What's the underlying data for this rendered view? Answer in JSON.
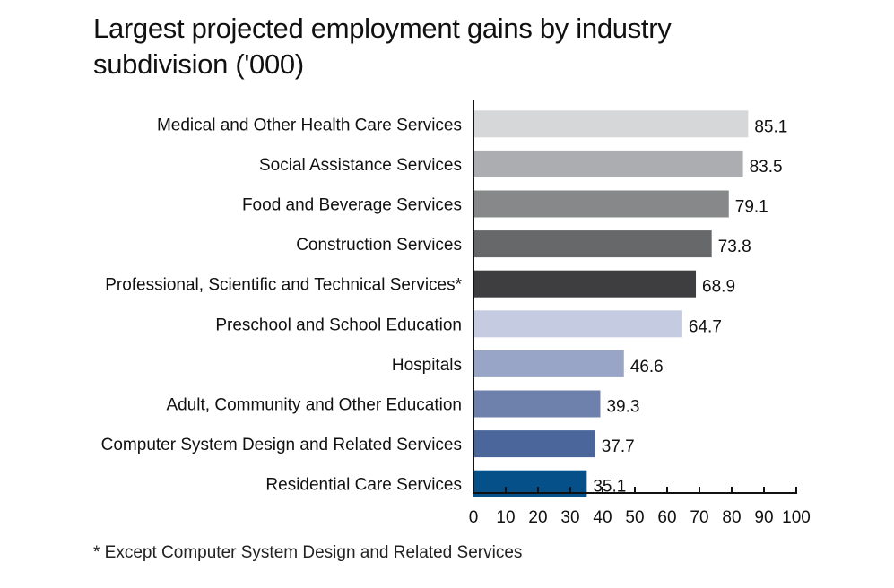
{
  "chart_data": {
    "type": "bar",
    "orientation": "horizontal",
    "title": "Largest projected employment gains by industry subdivision ('000)",
    "xlabel": "",
    "ylabel": "",
    "xlim": [
      0,
      100
    ],
    "x_ticks": [
      0,
      10,
      20,
      30,
      40,
      50,
      60,
      70,
      80,
      90,
      100
    ],
    "grid": false,
    "categories": [
      "Medical and Other Health Care Services",
      "Social Assistance Services",
      "Food and Beverage Services",
      "Construction Services",
      "Professional, Scientific and Technical Services*",
      "Preschool and School Education",
      "Hospitals",
      "Adult, Community and Other Education",
      "Computer System Design and Related Services",
      "Residential Care Services"
    ],
    "values": [
      85.1,
      83.5,
      79.1,
      73.8,
      68.9,
      64.7,
      46.6,
      39.3,
      37.7,
      35.1
    ],
    "value_labels": [
      "85.1",
      "83.5",
      "79.1",
      "73.8",
      "68.9",
      "64.7",
      "46.6",
      "39.3",
      "37.7",
      "35.1"
    ],
    "colors": [
      "#d6d7d9",
      "#acadb0",
      "#86888a",
      "#67686a",
      "#3e3d40",
      "#c5cbe0",
      "#99a5c6",
      "#6e80ac",
      "#4a669a",
      "#065089"
    ],
    "footnote": "* Except Computer System Design and Related Services"
  },
  "title_line1": "Largest projected employment gains by industry",
  "title_line2": "subdivision ('000)"
}
